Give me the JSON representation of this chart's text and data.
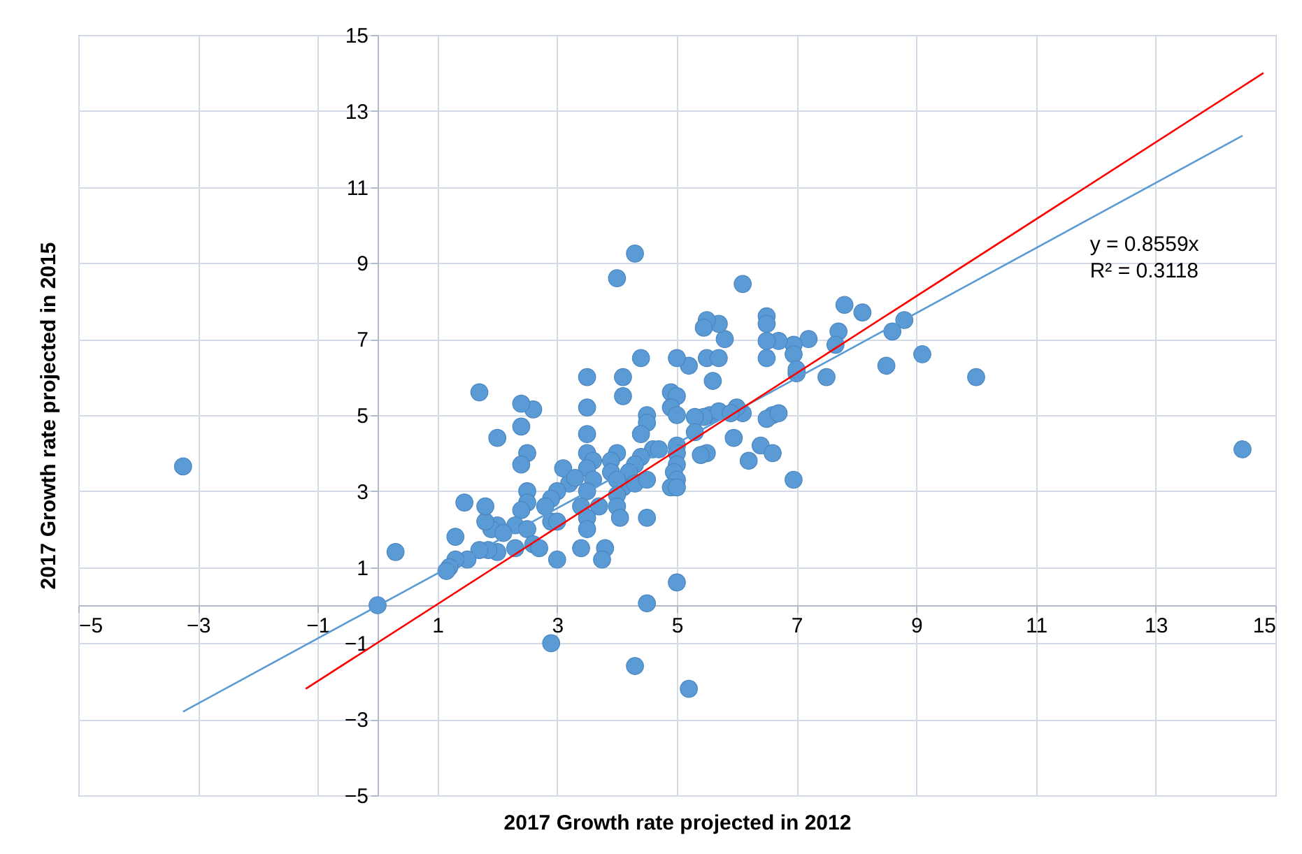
{
  "chart_data": {
    "type": "scatter",
    "xlabel": "2017 Growth rate projected in 2012",
    "ylabel": "2017 Growth rate projected in 2015",
    "xlim": [
      -5,
      15
    ],
    "ylim": [
      -5,
      15
    ],
    "xticks": [
      -5,
      -3,
      -1,
      1,
      3,
      5,
      7,
      9,
      11,
      13,
      15
    ],
    "yticks": [
      -5,
      -3,
      -1,
      1,
      3,
      5,
      7,
      9,
      11,
      13,
      15
    ],
    "grid": true,
    "annotations": [
      "y = 0.8559x",
      "R² = 0.3118"
    ],
    "series": [
      {
        "marker": "circle",
        "color": "#5b9bd5",
        "x": [
          -3.25,
          0,
          0.3,
          14.45,
          10.0,
          9.1,
          8.8,
          8.5,
          8.6,
          8.1,
          7.8,
          7.7,
          7.65,
          7.5,
          7.2,
          6.95,
          6.95,
          7.0,
          7.0,
          6.95,
          6.7,
          6.5,
          6.5,
          6.5,
          6.5,
          6.6,
          6.5,
          6.7,
          6.4,
          6.6,
          6.1,
          6.1,
          6.0,
          5.95,
          6.2,
          5.8,
          5.7,
          5.5,
          5.45,
          5.5,
          5.7,
          5.6,
          5.55,
          5.7,
          5.45,
          5.3,
          5.3,
          5.5,
          5.2,
          5.0,
          4.9,
          5.0,
          4.9,
          5.0,
          5.0,
          5.0,
          5.0,
          4.95,
          5.0,
          4.9,
          5.0,
          4.3,
          4.0,
          4.4,
          4.1,
          3.5,
          4.1,
          4.5,
          4.5,
          4.6,
          4.7,
          4.4,
          4.4,
          4.3,
          4.2,
          4.1,
          4.3,
          4.5,
          4.5,
          4.0,
          3.9,
          3.9,
          4.0,
          4.0,
          4.0,
          4.05,
          3.8,
          3.75,
          3.7,
          3.5,
          3.5,
          3.5,
          3.6,
          3.5,
          3.6,
          3.5,
          3.4,
          3.5,
          3.5,
          3.4,
          3.0,
          3.2,
          3.1,
          3.0,
          2.9,
          2.8,
          2.9,
          3.0,
          2.6,
          2.4,
          2.4,
          2.5,
          2.4,
          2.0,
          1.7,
          2.5,
          2.5,
          2.4,
          2.3,
          2.5,
          2.6,
          2.7,
          2.3,
          2.0,
          1.9,
          2.1,
          2.0,
          1.85,
          1.7,
          1.8,
          1.8,
          1.45,
          1.5,
          1.3,
          1.3,
          1.2,
          1.15,
          2.9,
          4.3,
          5.2,
          4.5,
          5.0,
          5.4,
          5.9,
          3.3
        ],
        "values": [
          3.65,
          0,
          1.4,
          4.1,
          6.0,
          6.6,
          7.5,
          6.3,
          7.2,
          7.7,
          7.9,
          7.2,
          6.85,
          6.0,
          7.0,
          6.85,
          6.6,
          6.1,
          6.2,
          3.3,
          6.95,
          7.6,
          7.4,
          6.95,
          6.5,
          5.0,
          4.9,
          5.05,
          4.2,
          4.0,
          8.45,
          5.05,
          5.2,
          4.4,
          3.8,
          7.0,
          7.4,
          7.5,
          7.3,
          6.5,
          6.5,
          5.9,
          5.0,
          5.1,
          4.95,
          4.95,
          4.55,
          4.0,
          6.3,
          6.5,
          5.6,
          5.5,
          5.2,
          5.0,
          4.2,
          4.0,
          3.7,
          3.5,
          3.3,
          3.1,
          3.1,
          9.25,
          8.6,
          6.5,
          6.0,
          6.0,
          5.5,
          5.0,
          4.8,
          4.1,
          4.1,
          4.5,
          3.9,
          3.7,
          3.5,
          3.1,
          3.2,
          3.3,
          2.3,
          4.0,
          3.8,
          3.5,
          3.3,
          2.9,
          2.6,
          2.3,
          1.5,
          1.2,
          2.6,
          5.2,
          4.5,
          4.0,
          3.8,
          3.6,
          3.3,
          3.0,
          2.6,
          2.3,
          2.0,
          1.5,
          1.2,
          3.2,
          3.6,
          3.0,
          2.8,
          2.6,
          2.2,
          2.2,
          5.15,
          5.3,
          4.7,
          4.0,
          3.7,
          4.4,
          5.6,
          3.0,
          2.7,
          2.5,
          2.1,
          2.0,
          1.6,
          1.5,
          1.5,
          2.1,
          2.0,
          1.9,
          1.4,
          1.45,
          1.45,
          2.2,
          2.6,
          2.7,
          1.2,
          1.8,
          1.2,
          1.0,
          0.9,
          -1.0,
          -1.6,
          -2.2,
          0.05,
          0.6,
          3.95,
          5.05,
          3.35
        ]
      },
      {
        "type": "line",
        "color": "#5b9bd5",
        "x": [
          -3.25,
          14.45
        ],
        "values": [
          -2.8,
          12.35
        ]
      },
      {
        "type": "line",
        "color": "#ff0000",
        "x": [
          -1.2,
          14.8
        ],
        "values": [
          -2.2,
          14.0
        ]
      }
    ]
  }
}
